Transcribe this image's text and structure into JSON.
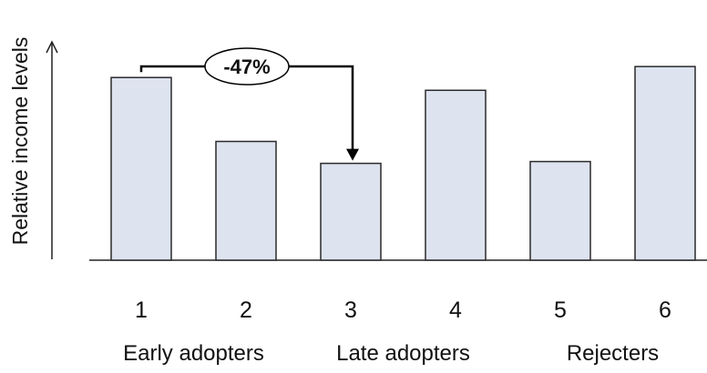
{
  "chart_data": {
    "type": "bar",
    "categories": [
      "1",
      "2",
      "3",
      "4",
      "5",
      "6"
    ],
    "values": [
      100,
      65,
      53,
      93,
      54,
      106
    ],
    "ylabel": "Relative income levels",
    "ylim": [
      0,
      125
    ],
    "groups": [
      {
        "label": "Early adopters",
        "categories": [
          "1",
          "2"
        ]
      },
      {
        "label": "Late adopters",
        "categories": [
          "3",
          "4"
        ]
      },
      {
        "label": "Rejecters",
        "categories": [
          "5",
          "6"
        ]
      }
    ],
    "annotation": {
      "text": "-47%",
      "from": "1",
      "to": "3"
    },
    "bar_color": "#dde3ef",
    "grid": false
  }
}
